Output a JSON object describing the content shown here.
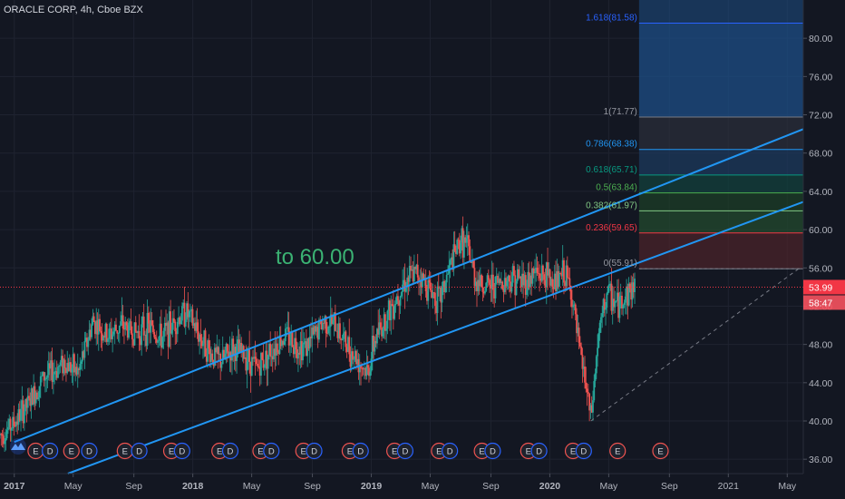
{
  "header": {
    "symbol_title": "ORACLE CORP, 4h, Cboe BZX"
  },
  "annotation": {
    "text": "to 60.00"
  },
  "colors": {
    "background": "#131722",
    "grid": "#1f2330",
    "channel": "#2196f3",
    "candle_up": "#26a69a",
    "candle_down": "#ef5350",
    "axis_text": "#b2b5be",
    "current_price_bg": "#f23645",
    "earnings_border": "#ef5350",
    "dividend_border": "#2962ff"
  },
  "price_axis": {
    "ticks": [
      36,
      40,
      44,
      48,
      52,
      56,
      60,
      64,
      68,
      72,
      76,
      80
    ],
    "tick_labels": [
      "36.00",
      "40.00",
      "44.00",
      "48.00",
      "52.00",
      "56.00",
      "60.00",
      "64.00",
      "68.00",
      "72.00",
      "76.00",
      "80.00"
    ],
    "current_price": {
      "value": 53.99,
      "label": "53.99"
    },
    "countdown_label": "58:47"
  },
  "time_axis": {
    "labels": [
      "2017",
      "May",
      "Sep",
      "2018",
      "May",
      "Sep",
      "2019",
      "May",
      "Sep",
      "2020",
      "May",
      "Sep",
      "2021",
      "May"
    ],
    "bold": [
      true,
      false,
      false,
      true,
      false,
      false,
      true,
      false,
      false,
      true,
      false,
      false,
      false,
      false
    ]
  },
  "fib_levels": [
    {
      "ratio": "1.618",
      "price": 81.58,
      "label": "1.618(81.58)",
      "line_color": "#2962ff",
      "zone_color": "#1e4e85"
    },
    {
      "ratio": "1",
      "price": 71.77,
      "label": "1(71.77)",
      "line_color": "#787b86",
      "zone_color": "#2a2e39"
    },
    {
      "ratio": "0.786",
      "price": 68.38,
      "label": "0.786(68.38)",
      "line_color": "#2196f3",
      "zone_color": "#1c3a5c"
    },
    {
      "ratio": "0.618",
      "price": 65.71,
      "label": "0.618(65.71)",
      "line_color": "#089981",
      "zone_color": "#13403c"
    },
    {
      "ratio": "0.5",
      "price": 63.84,
      "label": "0.5(63.84)",
      "line_color": "#4caf50",
      "zone_color": "#1c3d27"
    },
    {
      "ratio": "0.382",
      "price": 61.97,
      "label": "0.382(61.97)",
      "line_color": "#81c784",
      "zone_color": "#234a2e"
    },
    {
      "ratio": "0.236",
      "price": 59.65,
      "label": "0.236(59.65)",
      "line_color": "#f23645",
      "zone_color": "#4a2329"
    },
    {
      "ratio": "0",
      "price": 55.91,
      "label": "0(55.91)",
      "line_color": "#787b86",
      "zone_color": "#4a2329"
    }
  ],
  "events": {
    "items": [
      {
        "t": 2017.12,
        "type": "E"
      },
      {
        "t": 2017.2,
        "type": "D"
      },
      {
        "t": 2017.32,
        "type": "E"
      },
      {
        "t": 2017.42,
        "type": "D"
      },
      {
        "t": 2017.62,
        "type": "E"
      },
      {
        "t": 2017.7,
        "type": "D"
      },
      {
        "t": 2017.88,
        "type": "E"
      },
      {
        "t": 2017.94,
        "type": "D"
      },
      {
        "t": 2018.15,
        "type": "E"
      },
      {
        "t": 2018.21,
        "type": "D"
      },
      {
        "t": 2018.38,
        "type": "E"
      },
      {
        "t": 2018.44,
        "type": "D"
      },
      {
        "t": 2018.62,
        "type": "E"
      },
      {
        "t": 2018.68,
        "type": "D"
      },
      {
        "t": 2018.88,
        "type": "E"
      },
      {
        "t": 2018.94,
        "type": "D"
      },
      {
        "t": 2019.13,
        "type": "E"
      },
      {
        "t": 2019.19,
        "type": "D"
      },
      {
        "t": 2019.38,
        "type": "E"
      },
      {
        "t": 2019.44,
        "type": "D"
      },
      {
        "t": 2019.62,
        "type": "E"
      },
      {
        "t": 2019.68,
        "type": "D"
      },
      {
        "t": 2019.88,
        "type": "E"
      },
      {
        "t": 2019.94,
        "type": "D"
      },
      {
        "t": 2020.13,
        "type": "E"
      },
      {
        "t": 2020.19,
        "type": "D"
      },
      {
        "t": 2020.38,
        "type": "E"
      },
      {
        "t": 2020.62,
        "type": "E"
      }
    ]
  },
  "chart_data": {
    "type": "line",
    "title": "ORACLE CORP, 4h, Cboe BZX",
    "xlabel": "",
    "ylabel": "",
    "ylim": [
      34.5,
      84
    ],
    "xlim": [
      2016.92,
      2021.42
    ],
    "price_path": [
      [
        2016.92,
        38.5
      ],
      [
        2017.0,
        39.8
      ],
      [
        2017.08,
        41.8
      ],
      [
        2017.16,
        44.5
      ],
      [
        2017.22,
        45.2
      ],
      [
        2017.28,
        46.2
      ],
      [
        2017.36,
        45.0
      ],
      [
        2017.44,
        50.5
      ],
      [
        2017.52,
        48.8
      ],
      [
        2017.6,
        50.0
      ],
      [
        2017.68,
        49.2
      ],
      [
        2017.76,
        49.8
      ],
      [
        2017.82,
        48.6
      ],
      [
        2017.9,
        50.4
      ],
      [
        2017.96,
        51.5
      ],
      [
        2018.02,
        49.5
      ],
      [
        2018.1,
        47.0
      ],
      [
        2018.16,
        46.2
      ],
      [
        2018.22,
        47.5
      ],
      [
        2018.3,
        46.8
      ],
      [
        2018.36,
        45.5
      ],
      [
        2018.44,
        47.5
      ],
      [
        2018.52,
        49.0
      ],
      [
        2018.58,
        48.0
      ],
      [
        2018.64,
        47.8
      ],
      [
        2018.7,
        49.5
      ],
      [
        2018.74,
        50.5
      ],
      [
        2018.8,
        50.0
      ],
      [
        2018.86,
        48.0
      ],
      [
        2018.92,
        46.5
      ],
      [
        2018.98,
        45.0
      ],
      [
        2019.02,
        48.5
      ],
      [
        2019.1,
        51.5
      ],
      [
        2019.18,
        54.5
      ],
      [
        2019.26,
        55.5
      ],
      [
        2019.32,
        54.0
      ],
      [
        2019.38,
        52.5
      ],
      [
        2019.44,
        56.0
      ],
      [
        2019.5,
        59.0
      ],
      [
        2019.54,
        58.0
      ],
      [
        2019.58,
        55.0
      ],
      [
        2019.64,
        54.0
      ],
      [
        2019.72,
        54.5
      ],
      [
        2019.8,
        55.0
      ],
      [
        2019.86,
        54.5
      ],
      [
        2019.92,
        55.5
      ],
      [
        2019.98,
        55.0
      ],
      [
        2020.04,
        54.5
      ],
      [
        2020.08,
        55.5
      ],
      [
        2020.12,
        53.5
      ],
      [
        2020.16,
        48.0
      ],
      [
        2020.2,
        44.0
      ],
      [
        2020.23,
        40.0
      ],
      [
        2020.27,
        48.5
      ],
      [
        2020.32,
        53.5
      ],
      [
        2020.38,
        52.0
      ],
      [
        2020.44,
        53.5
      ],
      [
        2020.48,
        54.0
      ]
    ],
    "channel_upper": {
      "from": [
        2017.0,
        37.8
      ],
      "to": [
        2021.42,
        70.5
      ]
    },
    "channel_lower": {
      "from": [
        2017.3,
        34.5
      ],
      "to": [
        2021.58,
        64.0
      ]
    },
    "projection_dashed": {
      "from": [
        2020.23,
        40.0
      ],
      "to": [
        2021.4,
        56.0
      ]
    },
    "fib_box_x": [
      2020.5,
      2021.42
    ]
  }
}
